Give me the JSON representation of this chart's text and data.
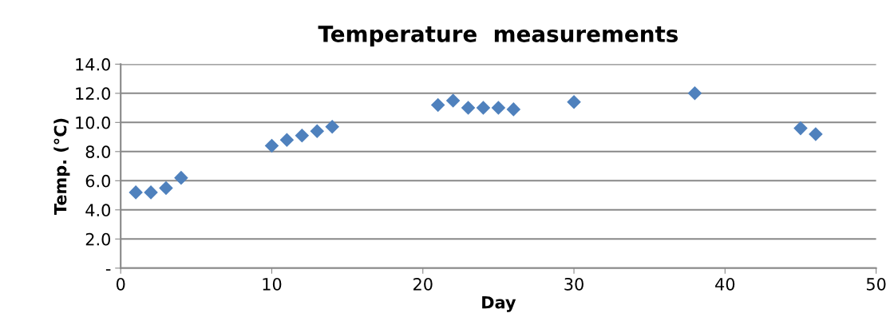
{
  "chart_data": {
    "type": "scatter",
    "title": "Temperature  measurements",
    "xlabel": "Day",
    "ylabel": "Temp. (°C)",
    "x": [
      1,
      2,
      3,
      4,
      10,
      11,
      12,
      13,
      14,
      21,
      22,
      23,
      24,
      25,
      26,
      30,
      38,
      45,
      46
    ],
    "series": [
      {
        "color": "#4f81bd",
        "values": [
          5.2,
          5.2,
          5.5,
          6.2,
          8.4,
          8.8,
          9.1,
          9.4,
          9.7,
          11.2,
          11.5,
          11.0,
          11.0,
          11.0,
          10.9,
          11.4,
          12.0,
          9.6,
          9.2
        ]
      }
    ],
    "xlim": [
      0,
      50
    ],
    "xticks": [
      0,
      10,
      20,
      30,
      40,
      50
    ],
    "ylim": [
      0,
      14
    ],
    "yticks": [
      {
        "value": 0,
        "label": "-"
      },
      {
        "value": 2,
        "label": "2.0"
      },
      {
        "value": 4,
        "label": "4.0"
      },
      {
        "value": 6,
        "label": "6.0"
      },
      {
        "value": 8,
        "label": "8.0"
      },
      {
        "value": 10,
        "label": "10.0"
      },
      {
        "value": 12,
        "label": "12.0"
      },
      {
        "value": 14,
        "label": "14.0"
      }
    ],
    "grid": "y",
    "marker": "diamond",
    "legend": false
  }
}
